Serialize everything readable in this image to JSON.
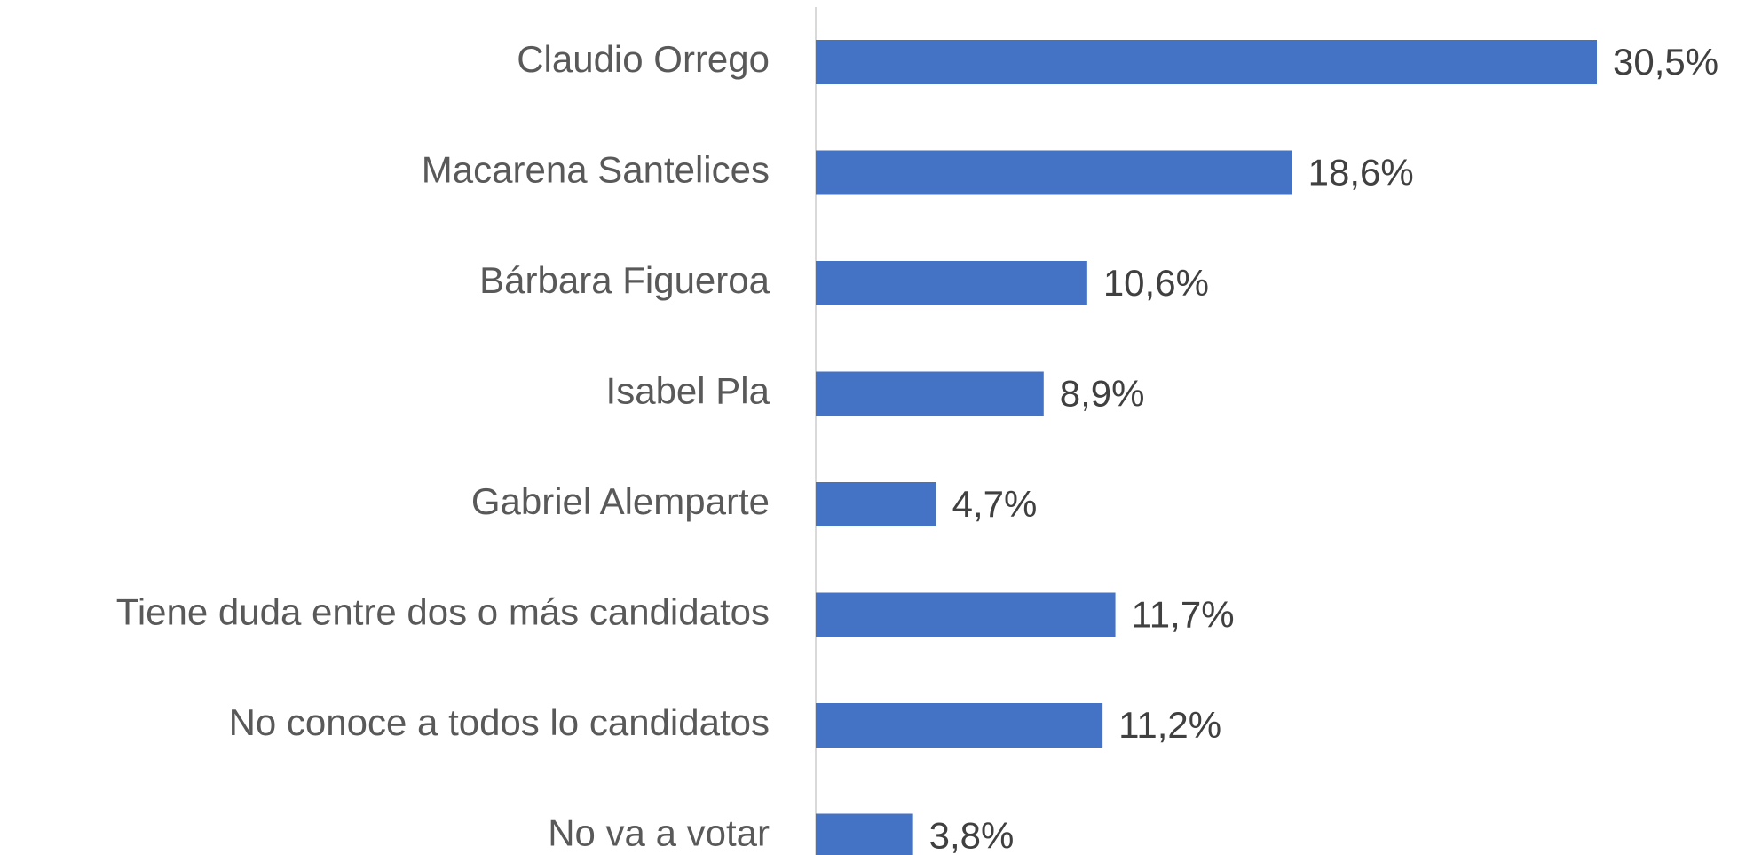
{
  "chart_data": {
    "type": "bar",
    "orientation": "horizontal",
    "categories": [
      "Claudio Orrego",
      "Macarena Santelices",
      "Bárbara Figueroa",
      "Isabel Pla",
      "Gabriel Alemparte",
      "Tiene duda entre dos o más candidatos",
      "No conoce a todos lo candidatos",
      "No va a votar"
    ],
    "values": [
      30.5,
      18.6,
      10.6,
      8.9,
      4.7,
      11.7,
      11.2,
      3.8
    ],
    "value_labels": [
      "30,5%",
      "18,6%",
      "10,6%",
      "8,9%",
      "4,7%",
      "11,7%",
      "11,2%",
      "3,8%"
    ],
    "color": "#4472c4"
  }
}
